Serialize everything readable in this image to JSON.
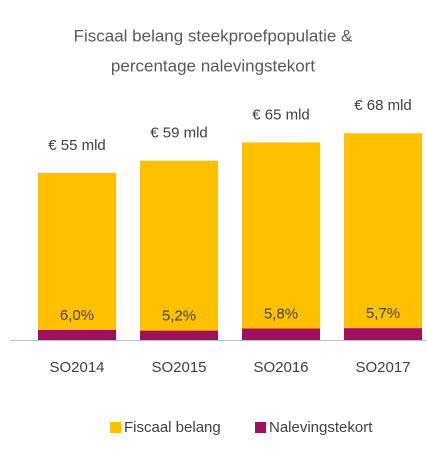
{
  "chart_data": {
    "type": "bar",
    "title_lines": [
      "Fiscaal belang steekproefpopulatie &",
      "percentage nalevingstekort"
    ],
    "categories": [
      "SO2014",
      "SO2015",
      "SO2016",
      "SO2017"
    ],
    "series": [
      {
        "name": "Fiscaal belang",
        "color": "#FFC000",
        "values": [
          55,
          59,
          65,
          68
        ],
        "value_labels": [
          "€ 55 mld",
          "€ 59 mld",
          "€ 65 mld",
          "€ 68 mld"
        ]
      },
      {
        "name": "Nalevingstekort",
        "color": "#A0105E",
        "values": [
          6.0,
          5.2,
          5.8,
          5.7
        ],
        "value_labels": [
          "6,0%",
          "5,2%",
          "5,8%",
          "5,7%"
        ]
      }
    ],
    "ylim": [
      0,
      75
    ],
    "legend": "bottom"
  }
}
